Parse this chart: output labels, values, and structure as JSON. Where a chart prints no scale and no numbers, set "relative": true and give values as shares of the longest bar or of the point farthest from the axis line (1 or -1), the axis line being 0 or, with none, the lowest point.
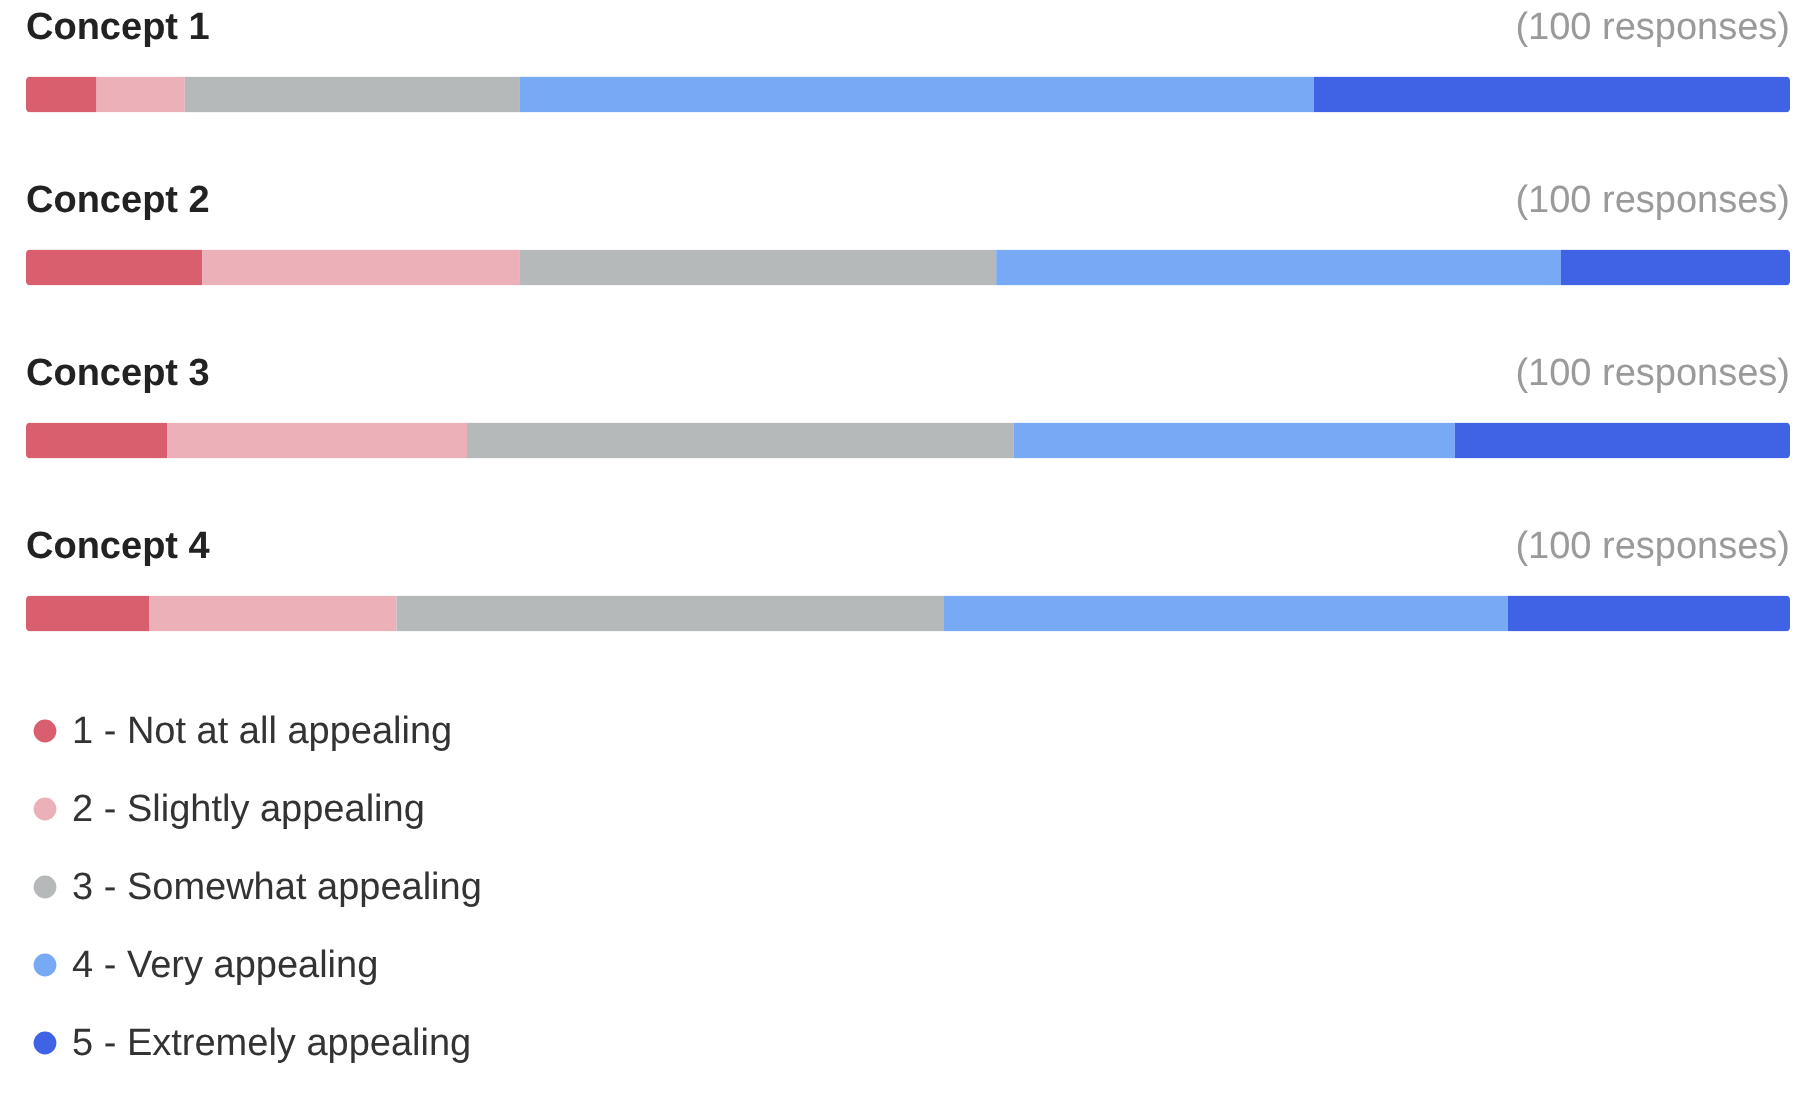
{
  "chart_data": {
    "type": "bar",
    "orientation": "horizontal",
    "stacked": true,
    "relative": true,
    "legend": "bottom",
    "categories": [
      "Concept 1",
      "Concept 2",
      "Concept 3",
      "Concept 4"
    ],
    "annotations": [
      "(100 responses)",
      "(100 responses)",
      "(100 responses)",
      "(100 responses)"
    ],
    "series": [
      {
        "name": "1 - Not at all appealing",
        "color": "#d95f6e",
        "values": [
          0.04,
          0.1,
          0.08,
          0.07
        ]
      },
      {
        "name": "2 - Slightly appealing",
        "color": "#ecb0b8",
        "values": [
          0.05,
          0.18,
          0.17,
          0.14
        ]
      },
      {
        "name": "3 - Somewhat appealing",
        "color": "#b5b9b9",
        "values": [
          0.19,
          0.27,
          0.31,
          0.31
        ]
      },
      {
        "name": "4 - Very appealing",
        "color": "#78a9f5",
        "values": [
          0.45,
          0.32,
          0.25,
          0.32
        ]
      },
      {
        "name": "5 - Extremely appealing",
        "color": "#3f63e4",
        "values": [
          0.27,
          0.13,
          0.19,
          0.16
        ]
      }
    ]
  }
}
